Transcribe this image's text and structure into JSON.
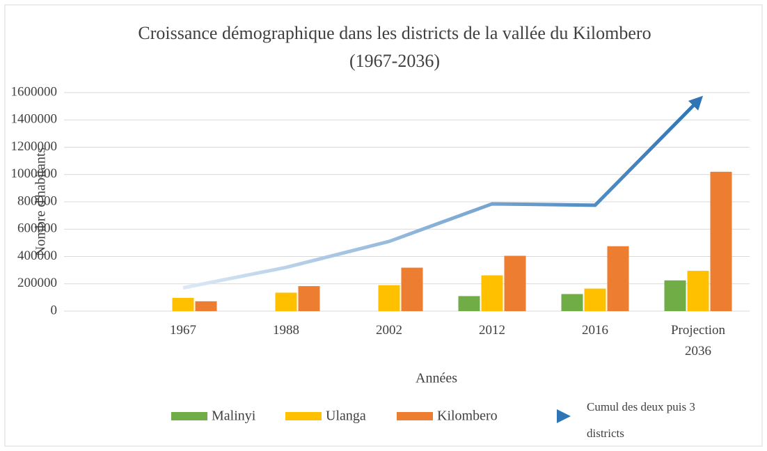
{
  "chart_data": {
    "type": "bar",
    "title": "Croissance démographique dans les districts de la vallée du Kilombero (1967-2036)",
    "x_label": "Années",
    "y_label": "Nombre d'habitants",
    "categories": [
      "1967",
      "1988",
      "2002",
      "2012",
      "2016",
      "Projection 2036"
    ],
    "series": [
      {
        "name": "Malinyi",
        "color": "#70ad47",
        "values": [
          null,
          null,
          null,
          110000,
          125000,
          225000
        ]
      },
      {
        "name": "Ulanga",
        "color": "#ffc000",
        "values": [
          97000,
          135000,
          190000,
          262000,
          165000,
          295000
        ]
      },
      {
        "name": "Kilombero",
        "color": "#ed7d31",
        "values": [
          72000,
          183000,
          318000,
          405000,
          475000,
          1020000
        ]
      },
      {
        "name": "Cumul des deux puis 3 districts",
        "type": "line",
        "color": "#2e75b6",
        "values": [
          170000,
          320000,
          510000,
          785000,
          775000,
          1540000
        ]
      }
    ],
    "ylim": [
      0,
      1600000
    ],
    "yticks": [
      0,
      200000,
      400000,
      600000,
      800000,
      1000000,
      1200000,
      1400000,
      1600000
    ],
    "grid": true,
    "legend": "bottom"
  }
}
